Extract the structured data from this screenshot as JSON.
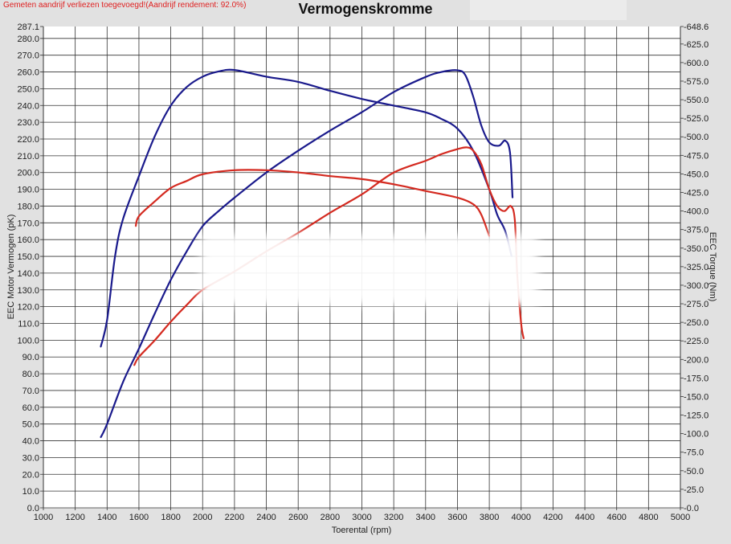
{
  "header": {
    "notice": "Gemeten aandrijf verliezen toegevoegd!(Aandrijf rendement: 92.0%)",
    "notice_color": "#e02020"
  },
  "chart_data": {
    "type": "line",
    "title": "Vermogenskromme",
    "xlabel": "Toerental (rpm)",
    "ylabel": "EEC Motor Vermogen (pK)",
    "y2label": "EEC Torque (Nm)",
    "xlim": [
      1000,
      5000
    ],
    "ylim": [
      0,
      287.1
    ],
    "y2lim": [
      0,
      648.6
    ],
    "grid": true,
    "x_ticks": [
      1000,
      1200,
      1400,
      1600,
      1800,
      2000,
      2200,
      2400,
      2600,
      2800,
      3000,
      3200,
      3400,
      3600,
      3800,
      4000,
      4200,
      4400,
      4600,
      4800,
      5000
    ],
    "x_tick_labels": [
      "1000",
      "1200",
      "1400",
      "1600",
      "1800",
      "2000",
      "2200",
      "2400",
      "2600",
      "2800",
      "3000",
      "3200",
      "3400",
      "3600",
      "3800",
      "4000",
      "4200",
      "4400",
      "4600",
      "4800",
      "5000"
    ],
    "y_ticks": [
      0,
      10,
      20,
      30,
      40,
      50,
      60,
      70,
      80,
      90,
      100,
      110,
      120,
      130,
      140,
      150,
      160,
      170,
      180,
      190,
      200,
      210,
      220,
      230,
      240,
      250,
      260,
      270,
      280,
      287.1
    ],
    "y_tick_labels": [
      "0.0",
      "10.0",
      "20.0",
      "30.0",
      "40.0",
      "50.0",
      "60.0",
      "70.0",
      "80.0",
      "90.0",
      "100.0",
      "110.0",
      "120.0",
      "130.0",
      "140.0",
      "150.0",
      "160.0",
      "170.0",
      "180.0",
      "190.0",
      "200.0",
      "210.0",
      "220.0",
      "230.0",
      "240.0",
      "250.0",
      "260.0",
      "270.0",
      "280.0",
      "287.1"
    ],
    "y2_ticks": [
      0,
      25,
      50,
      75,
      100,
      125,
      150,
      175,
      200,
      225,
      250,
      275,
      300,
      325,
      350,
      375,
      400,
      425,
      450,
      475,
      500,
      525,
      550,
      575,
      600,
      625,
      648.6
    ],
    "y2_tick_labels": [
      "0.0",
      "25.0",
      "50.0",
      "75.0",
      "100.0",
      "125.0",
      "150.0",
      "175.0",
      "200.0",
      "225.0",
      "250.0",
      "275.0",
      "300.0",
      "325.0",
      "350.0",
      "375.0",
      "400.0",
      "425.0",
      "450.0",
      "475.0",
      "500.0",
      "525.0",
      "550.0",
      "575.0",
      "600.0",
      "625.0",
      "648.6"
    ],
    "series": [
      {
        "axis": "y2",
        "color": "#1a1a8c",
        "x": [
          1360,
          1400,
          1450,
          1500,
          1600,
          1700,
          1800,
          1900,
          2000,
          2100,
          2200,
          2400,
          2600,
          2800,
          3000,
          3200,
          3400,
          3500,
          3600,
          3700,
          3800,
          3850,
          3900,
          3940
        ],
        "y": [
          216.9,
          253,
          339,
          389,
          447,
          501,
          542,
          567,
          581,
          588,
          590,
          581,
          574,
          562,
          551,
          542,
          533,
          524,
          511,
          481,
          429,
          395,
          373,
          339
        ]
      },
      {
        "axis": "y",
        "color": "#1a1a8c",
        "x": [
          1360,
          1400,
          1500,
          1600,
          1700,
          1800,
          1900,
          2000,
          2100,
          2200,
          2400,
          2600,
          2800,
          3000,
          3200,
          3400,
          3500,
          3600,
          3650,
          3700,
          3750,
          3800,
          3860,
          3900,
          3930,
          3946
        ],
        "y": [
          42,
          50,
          75,
          95,
          116,
          136,
          153,
          168,
          177,
          185,
          200,
          213,
          225,
          236,
          248,
          257,
          260,
          261,
          258,
          245,
          228,
          218,
          216,
          219,
          212,
          185
        ]
      },
      {
        "axis": "y2",
        "color": "#d42a20",
        "x": [
          1580,
          1600,
          1700,
          1800,
          1900,
          2000,
          2200,
          2400,
          2600,
          2800,
          3000,
          3200,
          3400,
          3600,
          3700,
          3750,
          3800
        ],
        "y": [
          379.5,
          393,
          413,
          431,
          440.5,
          449.5,
          455,
          455,
          452,
          447,
          443,
          436,
          427,
          418,
          409,
          395,
          366
        ]
      },
      {
        "axis": "y",
        "color": "#d42a20",
        "x": [
          1570,
          1600,
          1700,
          1800,
          1900,
          2000,
          2200,
          2400,
          2600,
          2800,
          3000,
          3200,
          3400,
          3500,
          3600,
          3660,
          3700,
          3750,
          3800,
          3850,
          3895,
          3935,
          3960,
          3975,
          4000,
          4016
        ],
        "y": [
          85,
          90,
          100,
          111,
          121,
          130,
          141,
          153,
          164,
          176,
          187,
          200,
          207,
          211,
          214,
          215,
          213,
          205,
          190,
          180,
          177,
          180,
          172,
          140,
          110,
          101
        ]
      }
    ]
  }
}
